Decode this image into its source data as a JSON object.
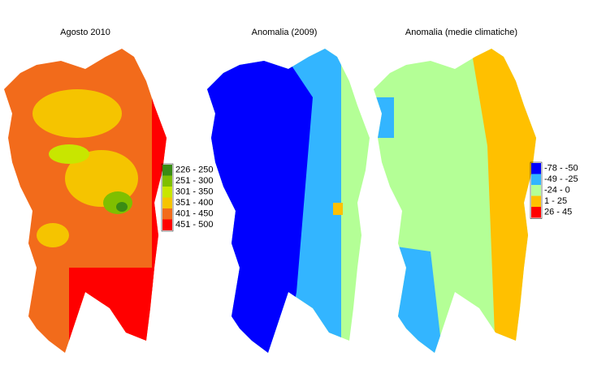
{
  "maps": [
    {
      "title": "Agosto 2010",
      "legend": [
        {
          "label": "226 - 250",
          "color": "#3a8c14"
        },
        {
          "label": "251 - 300",
          "color": "#7fbf00"
        },
        {
          "label": "301 - 350",
          "color": "#c8e600"
        },
        {
          "label": "351 - 400",
          "color": "#f5c400"
        },
        {
          "label": "401 - 450",
          "color": "#f26b1b"
        },
        {
          "label": "451 - 500",
          "color": "#ff0000"
        }
      ]
    },
    {
      "title": "Anomalia (2009)"
    },
    {
      "title": "Anomalia (medie climatiche)",
      "legend": [
        {
          "label": "-78 - -50",
          "color": "#0000ff"
        },
        {
          "label": "-49 - -25",
          "color": "#33b5ff"
        },
        {
          "label": "-24 - 0",
          "color": "#b4ff96"
        },
        {
          "label": "1 - 25",
          "color": "#ffc000"
        },
        {
          "label": "26 - 45",
          "color": "#ff0000"
        }
      ]
    }
  ]
}
